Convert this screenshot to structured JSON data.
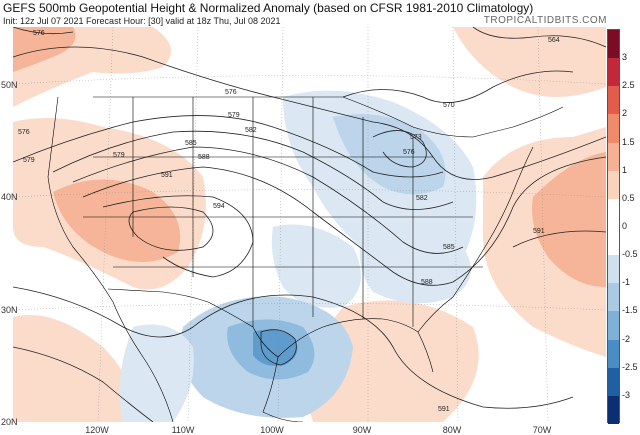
{
  "header": {
    "title": "GEFS 500mb Geopotential Height & Normalized Anomaly (based on CFSR 1981-2010 Climatology)",
    "subtitle": "Init: 12z Jul 07 2021   Forecast Hour: [30]   valid at 18z Thu, Jul 08 2021",
    "brand": "TROPICALTIDBITS.COM"
  },
  "axes": {
    "lat_labels": [
      "50N",
      "40N",
      "30N",
      "20N"
    ],
    "lon_labels": [
      "120W",
      "110W",
      "100W",
      "90W",
      "80W",
      "70W"
    ]
  },
  "contour_labels": [
    "576",
    "576",
    "576",
    "576",
    "579",
    "579",
    "579",
    "582",
    "582",
    "585",
    "585",
    "588",
    "588",
    "591",
    "591",
    "591",
    "594",
    "570",
    "573",
    "564"
  ],
  "colorbar": {
    "labels": [
      "3",
      "2.5",
      "2",
      "1.5",
      "1",
      "0.5",
      "0",
      "-0.5",
      "-1",
      "-1.5",
      "-2",
      "-2.5",
      "-3"
    ],
    "colors": [
      "#7a0d23",
      "#c2273a",
      "#e35b4b",
      "#f08a6c",
      "#f6b094",
      "#fad3bf",
      "#ffffff",
      "#ffffff",
      "#cfe0ef",
      "#a9c9e4",
      "#7fb0d8",
      "#4a8dc5",
      "#1f5fa3",
      "#0c2f73"
    ]
  },
  "colors": {
    "positive_light": "#fbdccb",
    "positive_mid": "#f6b599",
    "positive_strong": "#ee9071",
    "negative_light": "#dbe8f3",
    "negative_mid": "#bcd5ea",
    "negative_strong": "#8fbbdf",
    "negative_deep": "#5f9bcc"
  }
}
